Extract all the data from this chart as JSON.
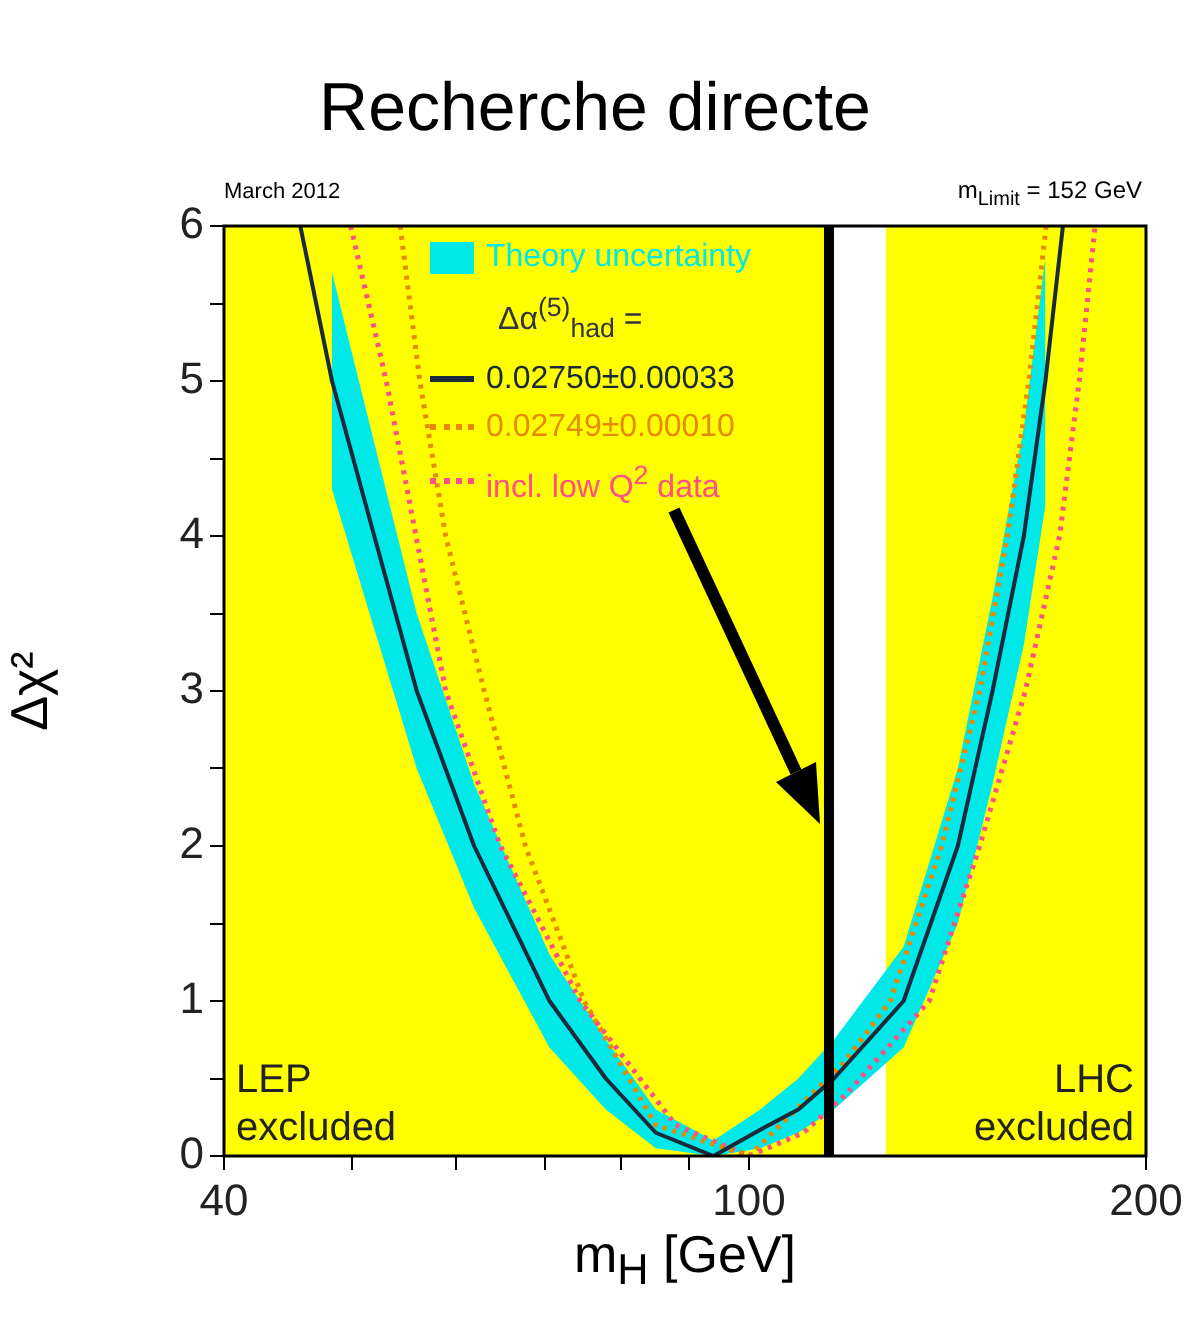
{
  "chart_data": {
    "type": "line",
    "title": "Recherche directe",
    "xlabel": "m$_{H}$ [GeV]",
    "ylabel": "Δχ²",
    "log": "x",
    "xlim": [
      40,
      200
    ],
    "xticks": [
      40,
      {
        "value": 50,
        "label": null
      },
      {
        "value": 60,
        "label": null
      },
      {
        "value": 70,
        "label": null
      },
      {
        "value": 80,
        "label": null
      },
      {
        "value": 90,
        "label": null
      },
      100,
      200
    ],
    "ylim": [
      0,
      6
    ],
    "yticks": [
      0,
      {
        "value": 0.5,
        "label": null
      },
      1,
      {
        "value": 1.5,
        "label": null
      },
      2,
      {
        "value": 2.5,
        "label": null
      },
      3,
      {
        "value": 3.5,
        "label": null
      },
      4,
      {
        "value": 4.5,
        "label": null
      },
      5,
      {
        "value": 5.5,
        "label": null
      },
      6
    ],
    "grid": false,
    "legend": "top",
    "legend_title": "Δα$^{(5)}$$_{had}$ =",
    "series": [
      {
        "name": "0.02750±0.00033",
        "color": "#1a2a3a",
        "line_style": "solid",
        "x": [
          45.7,
          48.3,
          52,
          56,
          61.9,
          70.6,
          77.9,
          85,
          94,
          102,
          109,
          116,
          131,
          144,
          153,
          161.6,
          167.8,
          173
        ],
        "values": [
          6,
          5,
          4,
          3,
          2,
          1,
          0.5,
          0.15,
          0,
          0.17,
          0.3,
          0.5,
          1,
          2,
          3,
          4,
          5,
          6
        ],
        "lower": [
          null,
          4.3,
          3.4,
          2.5,
          1.6,
          0.7,
          0.3,
          0.05,
          0,
          0.05,
          0.15,
          0.3,
          0.7,
          1.5,
          2.4,
          3.3,
          4.2,
          null
        ],
        "upper": [
          null,
          5.7,
          4.6,
          3.5,
          2.4,
          1.3,
          0.75,
          0.3,
          0.1,
          0.3,
          0.5,
          0.75,
          1.35,
          2.5,
          3.6,
          4.7,
          5.8,
          null
        ]
      },
      {
        "name": "0.02749±0.00010",
        "color": "#e88a00",
        "line_style": "dotted",
        "x": [
          54.4,
          56.3,
          58.9,
          63,
          67.7,
          75,
          85,
          100,
          118,
          128,
          140,
          149.6,
          157,
          163,
          168
        ],
        "values": [
          6,
          5,
          4,
          3,
          2,
          1,
          0.2,
          0,
          0.6,
          1,
          2,
          3,
          4,
          5,
          6
        ]
      },
      {
        "name": "incl. low Q$^{2}$ data",
        "color": "#ff4f86",
        "line_style": "dotted",
        "x": [
          49.9,
          53.1,
          58.9,
          64.8,
          74.5,
          88,
          100,
          110,
          118.5,
          137,
          149.6,
          162,
          172,
          178,
          183
        ],
        "values": [
          6,
          5,
          3,
          2,
          1,
          0.2,
          0,
          0.15,
          0.4,
          1,
          2,
          3,
          4,
          5,
          6
        ]
      }
    ],
    "bands": [
      {
        "axis": "x",
        "from": 40,
        "to": 116,
        "label": "LEP excluded",
        "color": "#ffff00"
      },
      {
        "axis": "x",
        "from": 127,
        "to": 200,
        "label": "LHC excluded",
        "color": "#ffff00"
      }
    ],
    "ref_lines": [
      {
        "axis": "x",
        "value": 115,
        "color": "#000000"
      }
    ],
    "annotations": [
      "March 2012",
      "m$_{Limit}$ = 152 GeV",
      "Theory uncertainty"
    ]
  }
}
